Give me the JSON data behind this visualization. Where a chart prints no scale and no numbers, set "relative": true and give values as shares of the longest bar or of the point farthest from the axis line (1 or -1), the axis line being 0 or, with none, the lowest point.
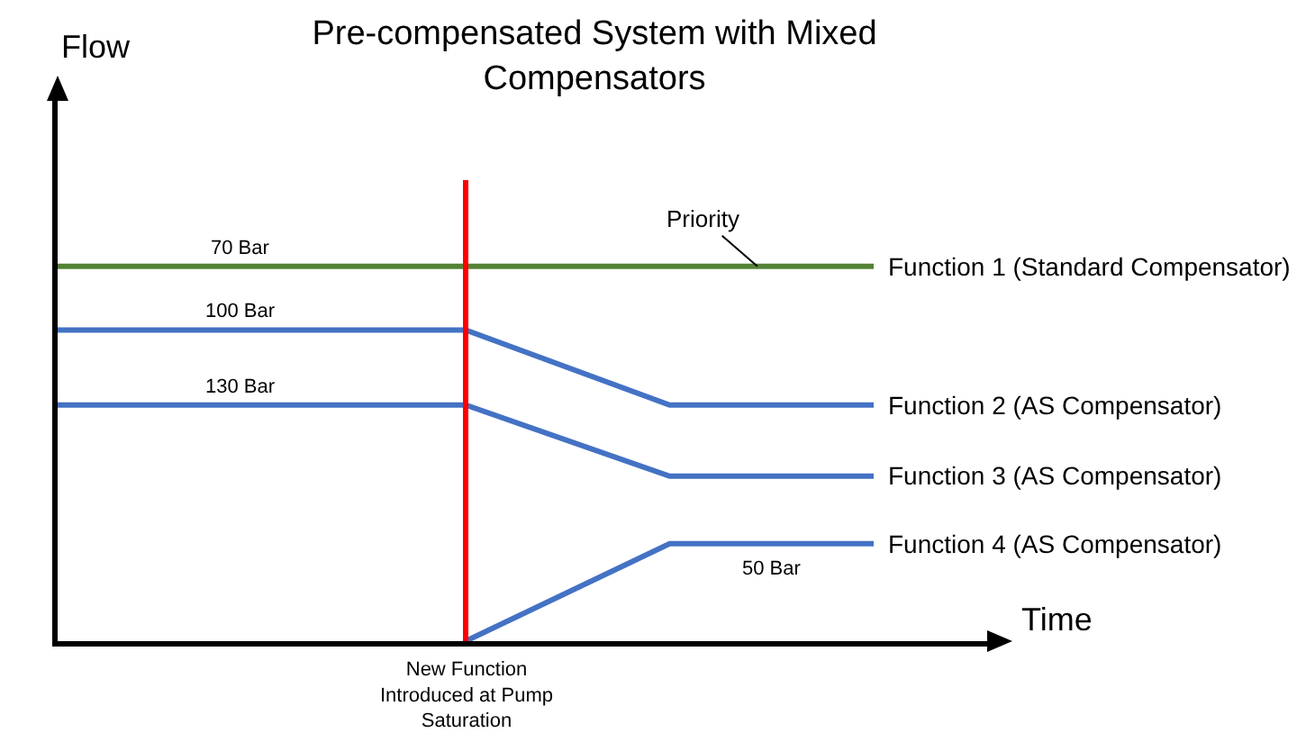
{
  "chart_data": {
    "type": "line",
    "title": "Pre-compensated System with Mixed Compensators",
    "xlabel": "Time",
    "relative": true,
    "categories": [
      null,
      null,
      null,
      null,
      null
    ],
    "series": [
      {
        "name": "Function 1 (Standard Compensator)",
        "color": "#548235",
        "values": [
          1,
          1,
          1,
          1,
          1
        ]
      },
      {
        "name": "Function 2 (AS Compensator)",
        "color": "#4472c4",
        "values": [
          0.83,
          0.83,
          0.83,
          0.63,
          0.63
        ]
      },
      {
        "name": "Function 3 (AS Compensator)",
        "color": "#4472c4",
        "values": [
          0.63,
          0.63,
          0.63,
          0.44,
          0.44
        ]
      },
      {
        "name": "Function 4 (AS Compensator)",
        "color": "#4472c4",
        "values": [
          null,
          null,
          0,
          0.26,
          0.26
        ]
      }
    ],
    "annotations": [
      {
        "text": "70 Bar",
        "y": 1
      },
      {
        "text": "100 Bar",
        "y": 0.83
      },
      {
        "text": "130 Bar",
        "y": 0.63
      },
      {
        "text": "50 Bar",
        "y": 0.26
      },
      {
        "text": "Priority",
        "y": 1
      },
      "Flow",
      "New Function Introduced at Pump Saturation"
    ],
    "grid": false,
    "legend": false,
    "marker": "none",
    "line_style": "solid"
  }
}
